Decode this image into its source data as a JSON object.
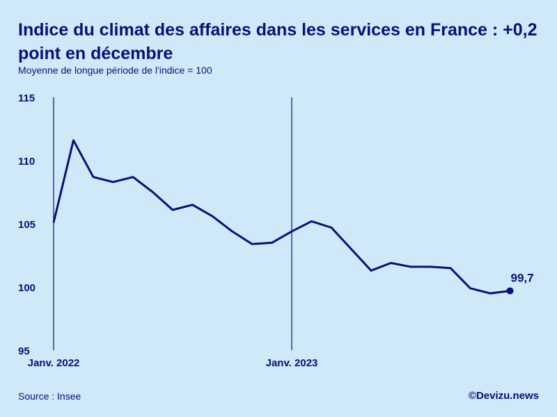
{
  "title": "Indice du climat des affaires dans les services en France : +0,2 point en décembre",
  "subtitle": "Moyenne de longue période de l'indice = 100",
  "source": "Source : Insee",
  "credit": "©Devizu.news",
  "colors": {
    "background": "#cfe9f8",
    "line": "#0a0f7a"
  },
  "chart_data": {
    "type": "line",
    "title": "Indice du climat des affaires dans les services en France : +0,2 point en décembre",
    "subtitle": "Moyenne de longue période de l'indice = 100",
    "xlabel": "",
    "ylabel": "",
    "ylim": [
      95,
      115
    ],
    "yticks": [
      95,
      100,
      105,
      110,
      115
    ],
    "x_tick_labels": [
      {
        "label": "Janv. 2022",
        "index": 0
      },
      {
        "label": "Janv. 2023",
        "index": 12
      }
    ],
    "x": [
      "2022-01",
      "2022-02",
      "2022-03",
      "2022-04",
      "2022-05",
      "2022-06",
      "2022-07",
      "2022-08",
      "2022-09",
      "2022-10",
      "2022-11",
      "2022-12",
      "2023-01",
      "2023-02",
      "2023-03",
      "2023-04",
      "2023-05",
      "2023-06",
      "2023-07",
      "2023-08",
      "2023-09",
      "2023-10",
      "2023-11",
      "2023-12"
    ],
    "values": [
      105.1,
      111.6,
      108.7,
      108.3,
      108.7,
      107.5,
      106.1,
      106.5,
      105.6,
      104.4,
      103.4,
      103.5,
      104.4,
      105.2,
      104.7,
      103.0,
      101.3,
      101.9,
      101.6,
      101.6,
      101.5,
      99.9,
      99.5,
      99.7
    ],
    "last_value_label": "99,7",
    "grid": false
  }
}
